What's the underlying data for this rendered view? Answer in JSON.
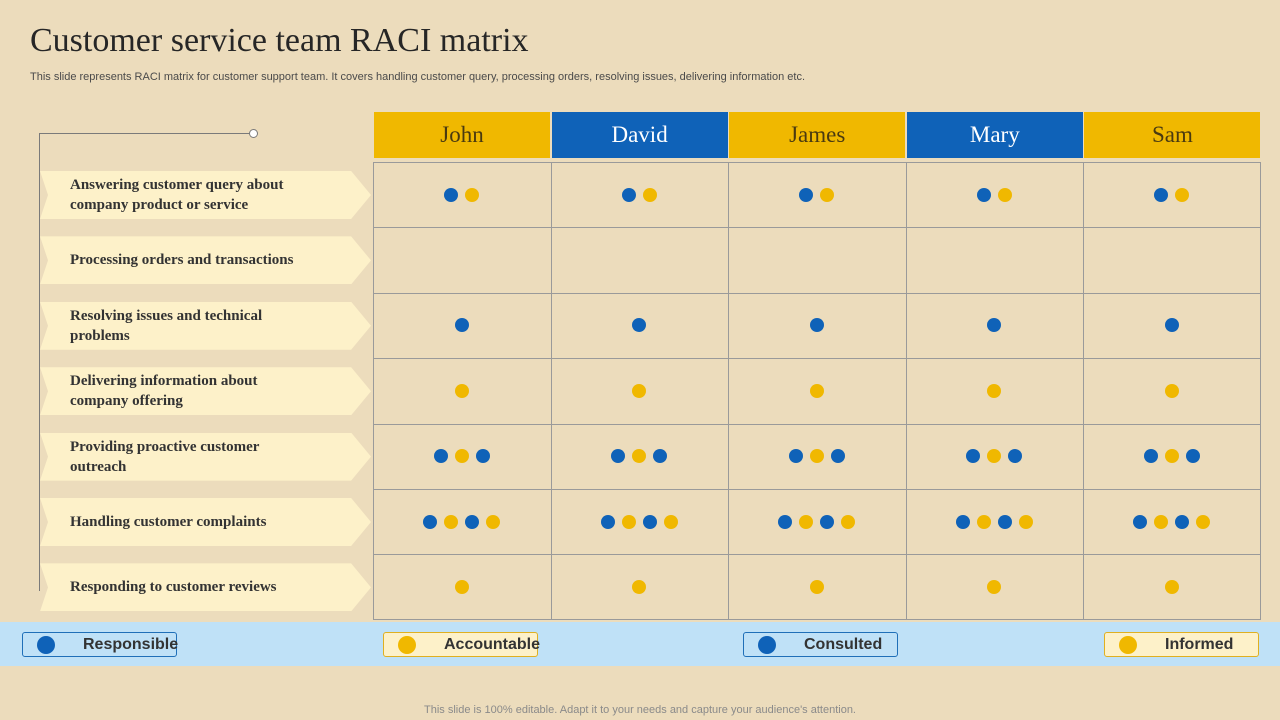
{
  "title": "Customer service team RACI matrix",
  "subtitle": "This slide represents RACI matrix for customer support team. It covers handling customer query, processing orders, resolving issues, delivering information etc.",
  "colors": {
    "blue": "#0f62b8",
    "yellow": "#f0b800",
    "background": "#ecdcbc",
    "task_bg": "#fdf1c9",
    "legend_band": "#bfe1f7"
  },
  "members": [
    {
      "name": "John",
      "color": "yellow"
    },
    {
      "name": "David",
      "color": "blue"
    },
    {
      "name": "James",
      "color": "yellow"
    },
    {
      "name": "Mary",
      "color": "blue"
    },
    {
      "name": "Sam",
      "color": "yellow"
    }
  ],
  "tasks": [
    {
      "label": "Answering customer query about company product or service",
      "dots": [
        "blue",
        "yellow"
      ]
    },
    {
      "label": "Processing orders and transactions",
      "dots": []
    },
    {
      "label": "Resolving issues and technical problems",
      "dots": [
        "blue"
      ]
    },
    {
      "label": "Delivering information about company offering",
      "dots": [
        "yellow"
      ]
    },
    {
      "label": "Providing proactive customer outreach",
      "dots": [
        "blue",
        "yellow",
        "blue"
      ]
    },
    {
      "label": "Handling customer complaints",
      "dots": [
        "blue",
        "yellow",
        "blue",
        "yellow"
      ]
    },
    {
      "label": "Responding to customer reviews",
      "dots": [
        "yellow"
      ]
    }
  ],
  "legend": [
    {
      "label": "Responsible",
      "color": "blue"
    },
    {
      "label": "Accountable",
      "color": "yellow"
    },
    {
      "label": "Consulted",
      "color": "blue"
    },
    {
      "label": "Informed",
      "color": "yellow"
    }
  ],
  "footer": "This slide is 100% editable. Adapt it to your needs and capture your audience's attention."
}
